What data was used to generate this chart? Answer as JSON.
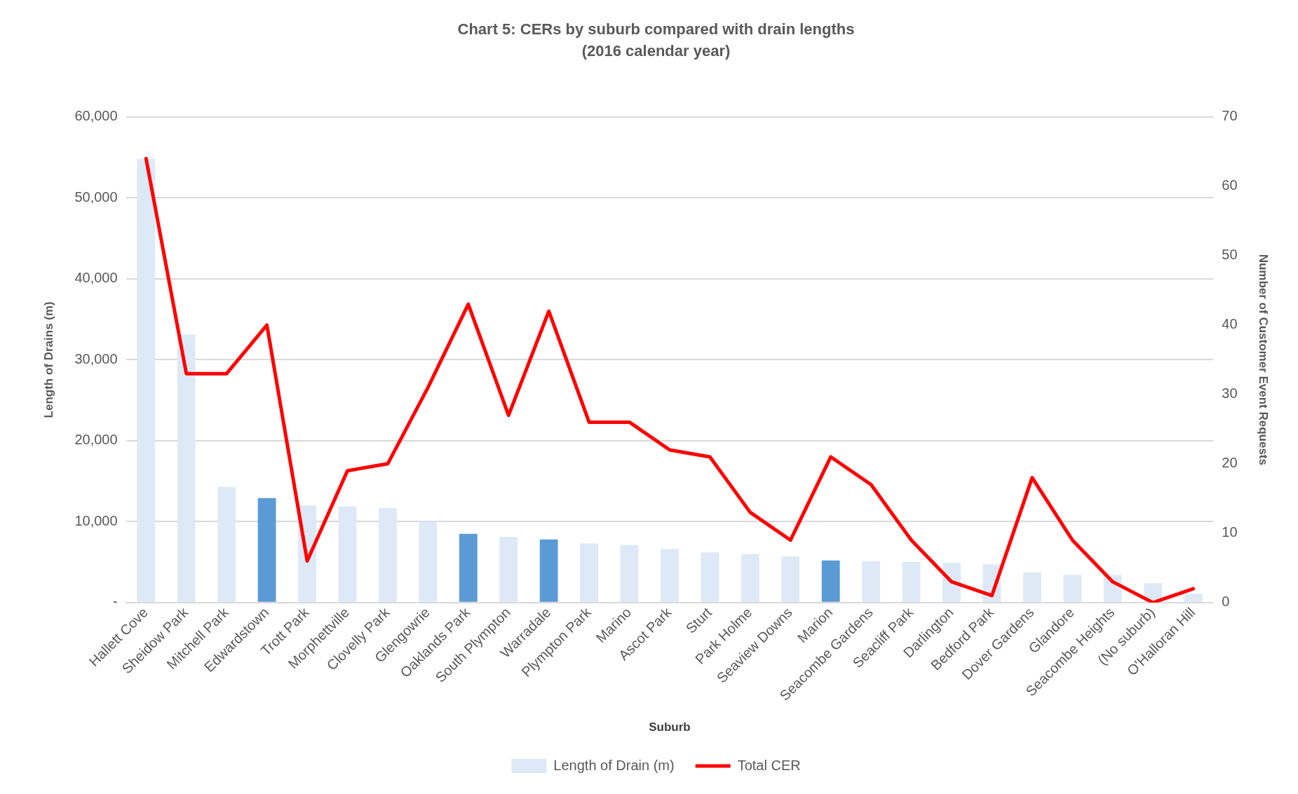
{
  "chart_data": {
    "type": "bar",
    "title": "Chart 5: CERs by suburb compared with drain lengths",
    "subtitle": "(2016 calendar year)",
    "xlabel": "Suburb",
    "ylabel": "Length of Drains (m)",
    "y2label": "Number of Customer Event Requests",
    "categories": [
      "Hallett Cove",
      "Sheidow Park",
      "Mitchell Park",
      "Edwardstown",
      "Trott Park",
      "Morphettville",
      "Clovelly Park",
      "Glengowrie",
      "Oaklands Park",
      "South Plympton",
      "Warradale",
      "Plympton Park",
      "Marino",
      "Ascot Park",
      "Sturt",
      "Park Holme",
      "Seaview Downs",
      "Marion",
      "Seacombe Gardens",
      "Seacliff Park",
      "Darlington",
      "Bedford Park",
      "Dover Gardens",
      "Glandore",
      "Seacombe Heights",
      "(No suburb)",
      "O'Halloran Hill"
    ],
    "series": [
      {
        "name": "Length of Drain (m)",
        "color": "#dde9f6",
        "colors": [
          "#dde9f6",
          "#dde9f6",
          "#dde9f6",
          "#5b9bd5",
          "#dde9f6",
          "#dde9f6",
          "#dde9f6",
          "#dde9f6",
          "#5b9bd5",
          "#dde9f6",
          "#5b9bd5",
          "#dde9f6",
          "#dde9f6",
          "#dde9f6",
          "#dde9f6",
          "#dde9f6",
          "#dde9f6",
          "#5b9bd5",
          "#dde9f6",
          "#dde9f6",
          "#dde9f6",
          "#dde9f6",
          "#dde9f6",
          "#dde9f6",
          "#dde9f6",
          "#dde9f6",
          "#dde9f6"
        ],
        "values": [
          54800,
          33100,
          14300,
          12900,
          12000,
          11900,
          11700,
          10000,
          8500,
          8100,
          7800,
          7300,
          7100,
          6600,
          6200,
          6000,
          5700,
          5200,
          5100,
          5000,
          4900,
          4700,
          3700,
          3400,
          3400,
          2400,
          1100
        ]
      },
      {
        "name": "Total CER",
        "type": "line",
        "axis": "y2",
        "color": "#ff0000",
        "values": [
          64,
          33,
          33,
          40,
          6,
          19,
          20,
          31,
          43,
          27,
          42,
          26,
          26,
          22,
          21,
          13,
          9,
          21,
          17,
          9,
          3,
          1,
          18,
          9,
          3,
          0,
          2
        ]
      }
    ],
    "ylim": [
      0,
      60000
    ],
    "yticks": [
      {
        "value": 0,
        "label": "-"
      },
      {
        "value": 10000,
        "label": "10,000"
      },
      {
        "value": 20000,
        "label": "20,000"
      },
      {
        "value": 30000,
        "label": "30,000"
      },
      {
        "value": 40000,
        "label": "40,000"
      },
      {
        "value": 50000,
        "label": "50,000"
      },
      {
        "value": 60000,
        "label": "60,000"
      }
    ],
    "y2lim": [
      0,
      70
    ],
    "y2ticks": [
      0,
      10,
      20,
      30,
      40,
      50,
      60,
      70
    ],
    "grid": "y",
    "legend": "bottom",
    "marker": "none"
  }
}
